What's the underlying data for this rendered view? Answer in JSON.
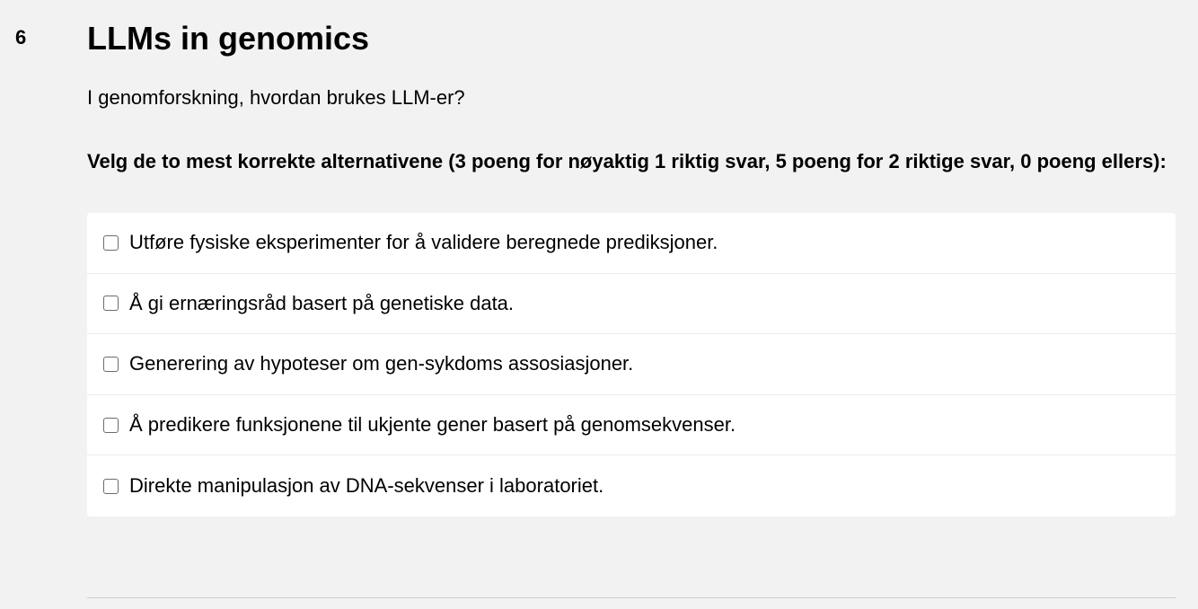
{
  "question": {
    "number": "6",
    "title": "LLMs in genomics",
    "prompt": "I genomforskning, hvordan brukes LLM-er?",
    "instructions": "Velg de to mest korrekte alternativene (3 poeng for nøyaktig 1 riktig svar, 5 poeng for 2 riktige svar, 0 poeng ellers):",
    "options": [
      {
        "label": "Utføre fysiske eksperimenter for å validere beregnede prediksjoner.",
        "checked": false
      },
      {
        "label": "Å gi ernæringsråd basert på genetiske data.",
        "checked": false
      },
      {
        "label": "Generering av hypoteser om gen-sykdoms assosiasjoner.",
        "checked": false
      },
      {
        "label": "Å predikere funksjonene til ukjente gener basert på genomsekvenser.",
        "checked": false
      },
      {
        "label": "Direkte manipulasjon av DNA-sekvenser i laboratoriet.",
        "checked": false
      }
    ]
  }
}
